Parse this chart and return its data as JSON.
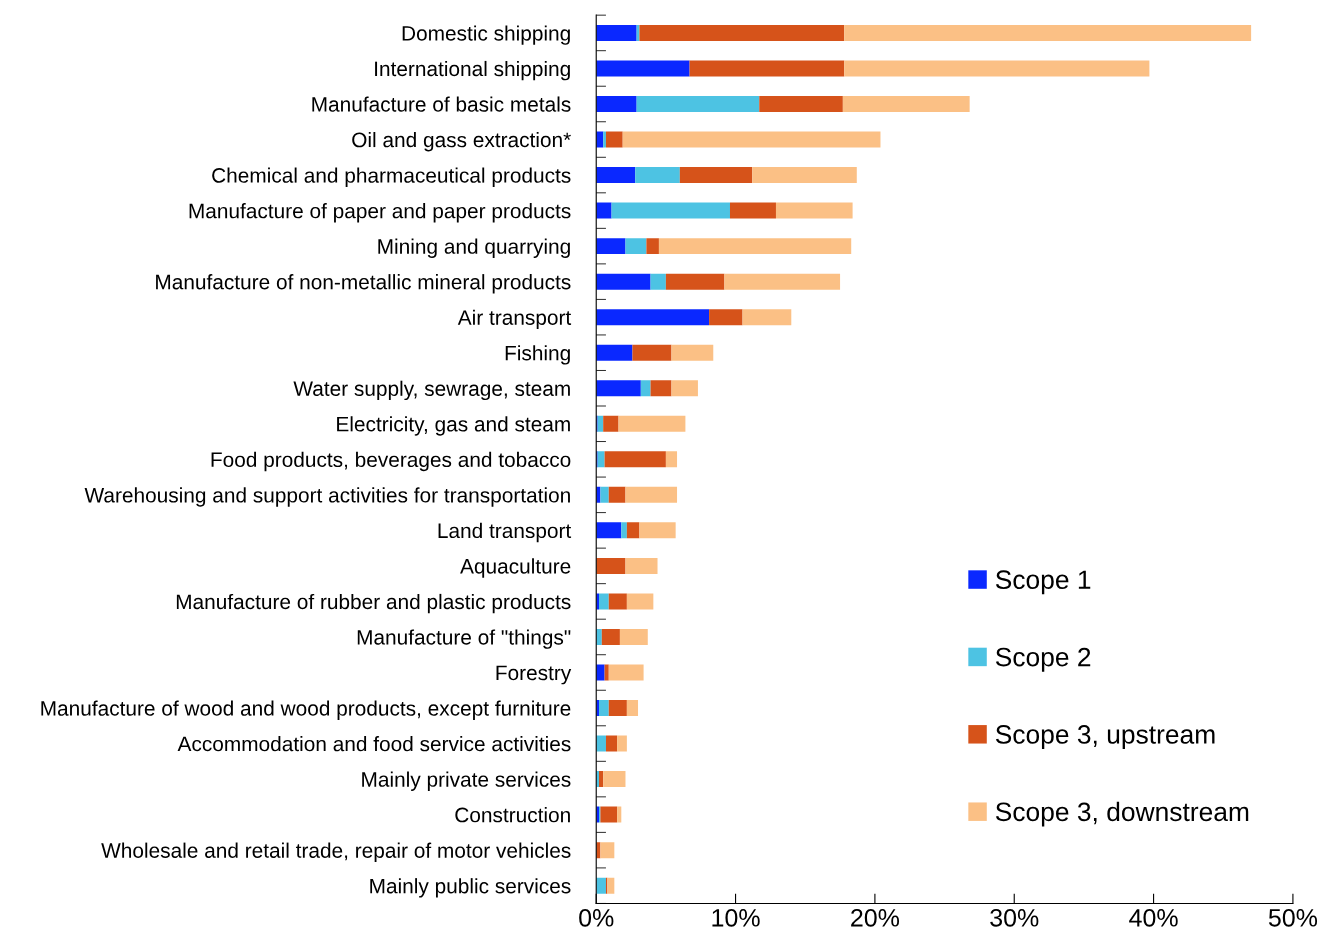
{
  "chart_data": {
    "type": "bar",
    "orientation": "horizontal",
    "stacked": true,
    "categories": [
      "Domestic shipping",
      "International shipping",
      "Manufacture of basic metals",
      "Oil and gass extraction*",
      "Chemical and pharmaceutical products",
      "Manufacture of paper and paper products",
      "Mining and quarrying",
      "Manufacture of non-metallic mineral products",
      "Air transport",
      "Fishing",
      "Water supply, sewrage, steam",
      "Electricity, gas and steam",
      "Food products, beverages and tobacco",
      "Warehousing and support activities for transportation",
      "Land transport",
      "Aquaculture",
      "Manufacture of rubber and plastic products",
      "Manufacture of \"things\"",
      "Forestry",
      "Manufacture of wood and wood products, except furniture",
      "Accommodation and food service activities",
      "Mainly private services",
      "Construction",
      "Wholesale and retail trade, repair of motor vehicles",
      "Mainly public services"
    ],
    "series": [
      {
        "name": "Scope 1",
        "color": "#0a28ff",
        "values": [
          2.9,
          6.7,
          2.9,
          0.5,
          2.8,
          1.1,
          2.1,
          3.9,
          8.1,
          2.6,
          3.2,
          0.1,
          0.1,
          0.3,
          1.8,
          0,
          0.2,
          0,
          0.6,
          0.2,
          0,
          0,
          0.2,
          0,
          0
        ]
      },
      {
        "name": "Scope 2",
        "color": "#4dc3e3",
        "values": [
          0.2,
          0,
          8.8,
          0.2,
          3.2,
          8.5,
          1.5,
          1.1,
          0,
          0,
          0.7,
          0.4,
          0.5,
          0.6,
          0.4,
          0,
          0.7,
          0.4,
          0,
          0.7,
          0.7,
          0.2,
          0.1,
          0,
          0.7
        ]
      },
      {
        "name": "Scope 3, upstream",
        "color": "#d6531a",
        "values": [
          14.7,
          11.1,
          6.0,
          1.2,
          5.2,
          3.3,
          0.9,
          4.2,
          2.4,
          2.8,
          1.5,
          1.1,
          4.4,
          1.2,
          0.9,
          2.1,
          1.3,
          1.3,
          0.3,
          1.3,
          0.8,
          0.3,
          1.2,
          0.3,
          0.1
        ]
      },
      {
        "name": "Scope 3, downstream",
        "color": "#fbc085",
        "values": [
          29.2,
          21.9,
          9.1,
          18.5,
          7.5,
          5.5,
          13.8,
          8.3,
          3.5,
          3.0,
          1.9,
          4.8,
          0.8,
          3.7,
          2.6,
          2.3,
          1.9,
          2.0,
          2.5,
          0.8,
          0.7,
          1.6,
          0.3,
          1.0,
          0.5
        ]
      }
    ],
    "xlim": [
      0,
      50
    ],
    "xticks": [
      {
        "value": 0,
        "label": "0%"
      },
      {
        "value": 10,
        "label": "10%"
      },
      {
        "value": 20,
        "label": "20%"
      },
      {
        "value": 30,
        "label": "30%"
      },
      {
        "value": 40,
        "label": "40%"
      },
      {
        "value": 50,
        "label": "50%"
      }
    ],
    "grid": false,
    "legend": "bottom right"
  }
}
